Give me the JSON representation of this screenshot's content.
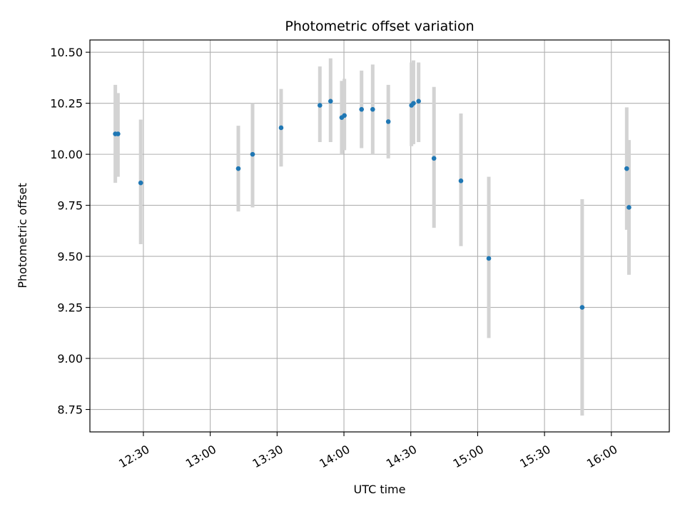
{
  "chart_data": {
    "type": "scatter",
    "title": "Photometric offset variation",
    "xlabel": "UTC time",
    "ylabel": "Photometric offset",
    "grid": true,
    "colors": {
      "point": "#1f77b4",
      "errorbar": "#d3d3d3",
      "grid": "#b0b0b0"
    },
    "xlim": [
      "12:06",
      "16:26"
    ],
    "ylim": [
      8.64,
      10.56
    ],
    "x_ticks": [
      "12:30",
      "13:00",
      "13:30",
      "14:00",
      "14:30",
      "15:00",
      "15:30",
      "16:00"
    ],
    "y_ticks": [
      "8.75",
      "9.00",
      "9.25",
      "9.50",
      "9.75",
      "10.00",
      "10.25",
      "10.50"
    ],
    "points": [
      {
        "x": "12:17:24",
        "y": 10.1,
        "yerr_low": 9.86,
        "yerr_high": 10.34
      },
      {
        "x": "12:18:36",
        "y": 10.1,
        "yerr_low": 9.89,
        "yerr_high": 10.3
      },
      {
        "x": "12:28:48",
        "y": 9.86,
        "yerr_low": 9.56,
        "yerr_high": 10.17
      },
      {
        "x": "13:12:36",
        "y": 9.93,
        "yerr_low": 9.72,
        "yerr_high": 10.14
      },
      {
        "x": "13:19:00",
        "y": 10.0,
        "yerr_low": 9.74,
        "yerr_high": 10.25
      },
      {
        "x": "13:31:48",
        "y": 10.13,
        "yerr_low": 9.94,
        "yerr_high": 10.32
      },
      {
        "x": "13:49:12",
        "y": 10.24,
        "yerr_low": 10.06,
        "yerr_high": 10.43
      },
      {
        "x": "13:54:00",
        "y": 10.26,
        "yerr_low": 10.06,
        "yerr_high": 10.47
      },
      {
        "x": "13:59:00",
        "y": 10.18,
        "yerr_low": 10.0,
        "yerr_high": 10.36
      },
      {
        "x": "14:00:12",
        "y": 10.19,
        "yerr_low": 10.02,
        "yerr_high": 10.37
      },
      {
        "x": "14:07:54",
        "y": 10.22,
        "yerr_low": 10.03,
        "yerr_high": 10.41
      },
      {
        "x": "14:12:54",
        "y": 10.22,
        "yerr_low": 10.0,
        "yerr_high": 10.44
      },
      {
        "x": "14:19:54",
        "y": 10.16,
        "yerr_low": 9.98,
        "yerr_high": 10.34
      },
      {
        "x": "14:30:18",
        "y": 10.24,
        "yerr_low": 10.04,
        "yerr_high": 10.45
      },
      {
        "x": "14:31:12",
        "y": 10.25,
        "yerr_low": 10.05,
        "yerr_high": 10.46
      },
      {
        "x": "14:33:30",
        "y": 10.26,
        "yerr_low": 10.06,
        "yerr_high": 10.45
      },
      {
        "x": "14:40:24",
        "y": 9.98,
        "yerr_low": 9.64,
        "yerr_high": 10.33
      },
      {
        "x": "14:52:30",
        "y": 9.87,
        "yerr_low": 9.55,
        "yerr_high": 10.2
      },
      {
        "x": "15:05:00",
        "y": 9.49,
        "yerr_low": 9.1,
        "yerr_high": 9.89
      },
      {
        "x": "15:46:54",
        "y": 9.25,
        "yerr_low": 8.72,
        "yerr_high": 9.78
      },
      {
        "x": "16:06:54",
        "y": 9.93,
        "yerr_low": 9.63,
        "yerr_high": 10.23
      },
      {
        "x": "16:07:54",
        "y": 9.74,
        "yerr_low": 9.41,
        "yerr_high": 10.07
      }
    ]
  }
}
